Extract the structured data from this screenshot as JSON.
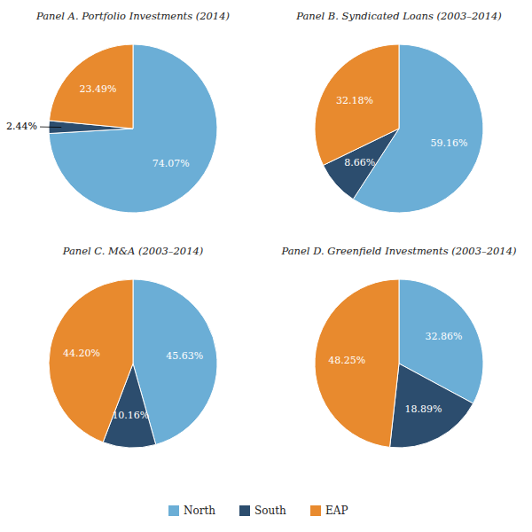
{
  "chart_data": [
    {
      "type": "pie",
      "title": "Panel A. Portfolio Investments (2014)",
      "categories": [
        "North",
        "South",
        "EAP"
      ],
      "values": [
        74.07,
        2.44,
        23.49
      ],
      "value_labels": [
        "74.07%",
        "2.44%",
        "23.49%"
      ],
      "colors": [
        "#6baed6",
        "#2c4d6e",
        "#e88a2e"
      ],
      "data_labels": true,
      "legend": "bottom"
    },
    {
      "type": "pie",
      "title": "Panel B. Syndicated Loans (2003–2014)",
      "categories": [
        "North",
        "South",
        "EAP"
      ],
      "values": [
        59.16,
        8.66,
        32.18
      ],
      "value_labels": [
        "59.16%",
        "8.66%",
        "32.18%"
      ],
      "colors": [
        "#6baed6",
        "#2c4d6e",
        "#e88a2e"
      ],
      "data_labels": true
    },
    {
      "type": "pie",
      "title": "Panel C. M&A (2003–2014)",
      "categories": [
        "North",
        "South",
        "EAP"
      ],
      "values": [
        45.63,
        10.16,
        44.2
      ],
      "value_labels": [
        "45.63%",
        "10.16%",
        "44.20%"
      ],
      "colors": [
        "#6baed6",
        "#2c4d6e",
        "#e88a2e"
      ],
      "data_labels": true
    },
    {
      "type": "pie",
      "title": "Panel D. Greenfield Investments (2003–2014)",
      "categories": [
        "North",
        "South",
        "EAP"
      ],
      "values": [
        32.86,
        18.89,
        48.25
      ],
      "value_labels": [
        "32.86%",
        "18.89%",
        "48.25%"
      ],
      "colors": [
        "#6baed6",
        "#2c4d6e",
        "#e88a2e"
      ],
      "data_labels": true
    }
  ]
}
